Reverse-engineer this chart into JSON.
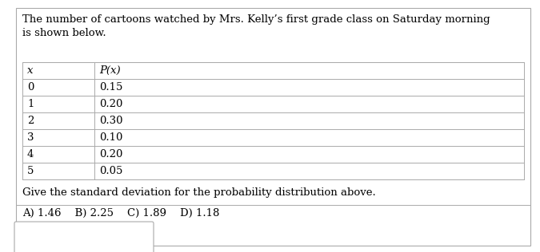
{
  "title_text": "The number of cartoons watched by Mrs. Kelly’s first grade class on Saturday morning\nis shown below.",
  "col_headers": [
    "x",
    "P(x)"
  ],
  "rows": [
    [
      "0",
      "0.15"
    ],
    [
      "1",
      "0.20"
    ],
    [
      "2",
      "0.30"
    ],
    [
      "3",
      "0.10"
    ],
    [
      "4",
      "0.20"
    ],
    [
      "5",
      "0.05"
    ]
  ],
  "question_text": "Give the standard deviation for the probability distribution above.",
  "answers_text": "A) 1.46    B) 2.25    C) 1.89    D) 1.18",
  "bg_color": "#ffffff",
  "border_color": "#aaaaaa",
  "text_color": "#000000",
  "title_font_size": 9.5,
  "table_font_size": 9.5,
  "answer_font_size": 9.5,
  "fig_width": 6.75,
  "fig_height": 3.16,
  "dpi": 100
}
